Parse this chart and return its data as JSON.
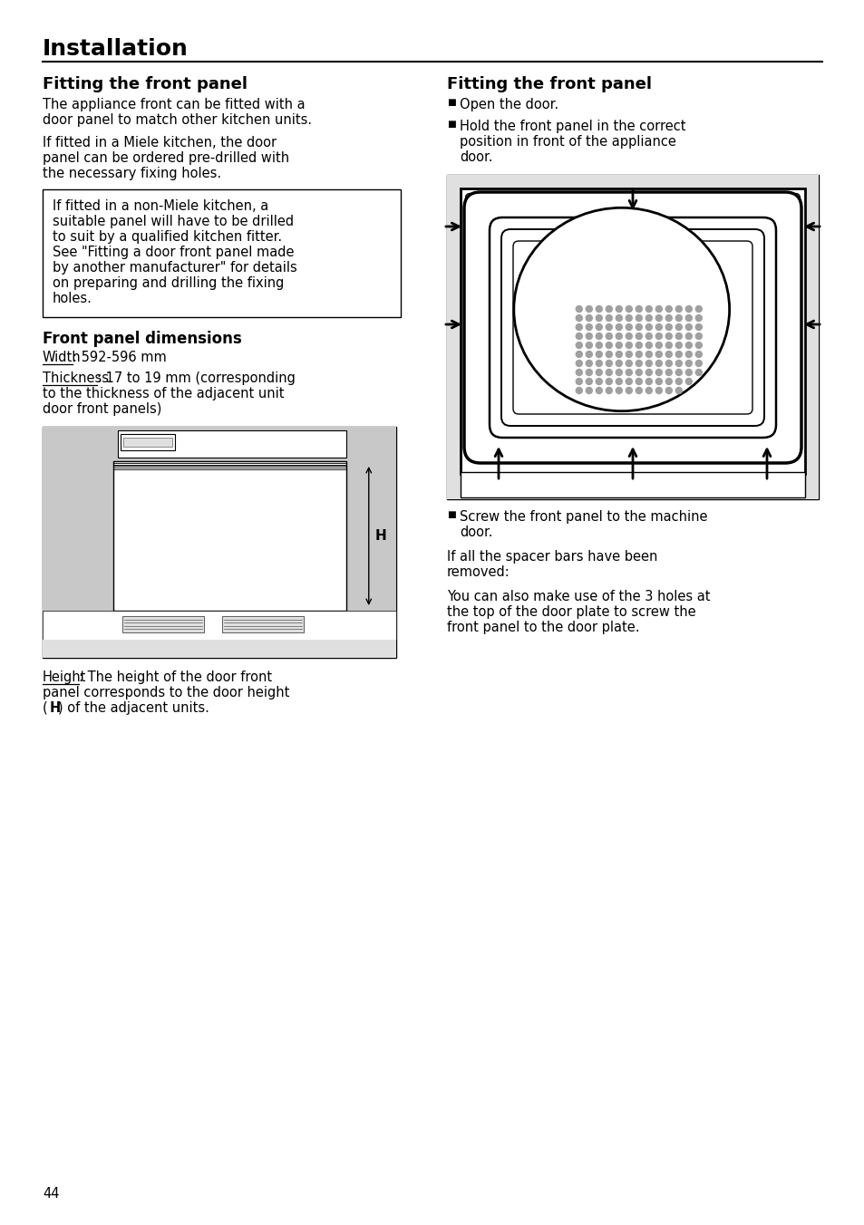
{
  "page_title": "Installation",
  "section_left_title": "Fitting the front panel",
  "section_right_title": "Fitting the front panel",
  "left_para1_line1": "The appliance front can be fitted with a",
  "left_para1_line2": "door panel to match other kitchen units.",
  "left_para2_line1": "If fitted in a Miele kitchen, the door",
  "left_para2_line2": "panel can be ordered pre-drilled with",
  "left_para2_line3": "the necessary fixing holes.",
  "box_text_lines": [
    "If fitted in a non-Miele kitchen, a",
    "suitable panel will have to be drilled",
    "to suit by a qualified kitchen fitter.",
    "See \"Fitting a door front panel made",
    "by another manufacturer\" for details",
    "on preparing and drilling the fixing",
    "holes."
  ],
  "front_panel_dim_title": "Front panel dimensions",
  "width_label": "Width",
  "width_text": ": 592-596 mm",
  "thickness_label": "Thickness",
  "thickness_line1": ": 17 to 19 mm (corresponding",
  "thickness_line2": "to the thickness of the adjacent unit",
  "thickness_line3": "door front panels)",
  "height_label": "Height",
  "height_line1": ": The height of the door front",
  "height_line2": "panel corresponds to the door height",
  "height_line3_pre": "(",
  "height_line3_bold": "H",
  "height_line3_post": ") of the adjacent units.",
  "right_bullet1": "Open the door.",
  "right_bullet2_line1": "Hold the front panel in the correct",
  "right_bullet2_line2": "position in front of the appliance",
  "right_bullet2_line3": "door.",
  "right_bullet3_line1": "Screw the front panel to the machine",
  "right_bullet3_line2": "door.",
  "right_para1_line1": "If all the spacer bars have been",
  "right_para1_line2": "removed:",
  "right_para2_line1": "You can also make use of the 3 holes at",
  "right_para2_line2": "the top of the door plate to screw the",
  "right_para2_line3": "front panel to the door plate.",
  "page_number": "44",
  "bg_color": "#ffffff",
  "text_color": "#000000",
  "gray_color": "#c8c8c8",
  "light_gray": "#e0e0e0",
  "dark_gray": "#a0a0a0"
}
